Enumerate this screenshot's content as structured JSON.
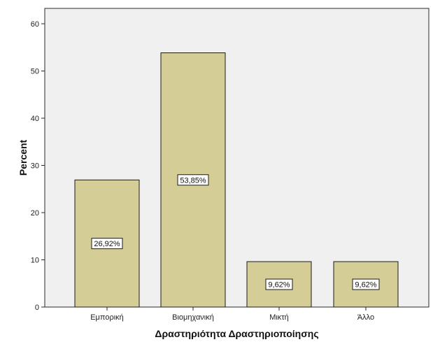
{
  "chart_data": {
    "type": "bar",
    "categories": [
      "Εμπορική",
      "Βιομηχανική",
      "Μικτή",
      "Άλλο"
    ],
    "values": [
      26.92,
      53.85,
      9.62,
      9.62
    ],
    "data_labels": [
      "26,92%",
      "53,85%",
      "9,62%",
      "9,62%"
    ],
    "xlabel": "Δραστηριότητα Δραστηριοποίησης",
    "ylabel": "Percent",
    "ylim": [
      0,
      60
    ],
    "yticks": [
      0,
      10,
      20,
      30,
      40,
      50,
      60
    ],
    "grid": false,
    "colors": {
      "bar_fill": "#D5CD96",
      "bar_stroke": "#1a1a1a",
      "plot_background": "#F0F0F0",
      "label_box_fill": "#FFFFFF"
    }
  }
}
